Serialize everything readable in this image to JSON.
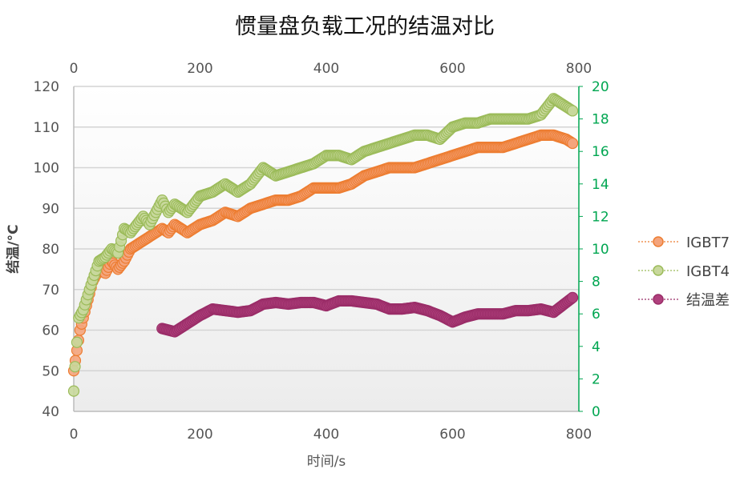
{
  "chart_data": {
    "type": "scatter",
    "title": "惯量盘负载工况的结温对比",
    "xlabel": "时间/s",
    "ylabel": "结温/°C",
    "xlim": [
      0,
      800
    ],
    "ylim": [
      40,
      120
    ],
    "y2lim": [
      0,
      20
    ],
    "x_ticks": [
      "0",
      "200",
      "400",
      "600",
      "800"
    ],
    "x2_ticks": [
      "0",
      "200",
      "400",
      "600",
      "800"
    ],
    "y_ticks": [
      "40",
      "50",
      "60",
      "70",
      "80",
      "90",
      "100",
      "110",
      "120"
    ],
    "y2_ticks": [
      "0",
      "2",
      "4",
      "6",
      "8",
      "10",
      "12",
      "14",
      "16",
      "18",
      "20"
    ],
    "grid": true,
    "legend_position": "right",
    "colors": {
      "IGBT7": "#ed7d31",
      "IGBT4": "#9bbb59",
      "结温差": "#a5306e",
      "y2_axis": "#00a651"
    },
    "series": [
      {
        "name": "IGBT7",
        "axis": "left",
        "x": [
          0,
          5,
          10,
          20,
          30,
          40,
          50,
          60,
          70,
          80,
          90,
          100,
          120,
          140,
          150,
          160,
          180,
          200,
          220,
          240,
          260,
          280,
          300,
          320,
          340,
          360,
          380,
          400,
          420,
          440,
          460,
          480,
          500,
          520,
          540,
          560,
          580,
          600,
          620,
          640,
          660,
          680,
          700,
          720,
          740,
          760,
          780,
          790
        ],
        "y": [
          50,
          55,
          60,
          66,
          72,
          75,
          74,
          77,
          75,
          77,
          80,
          81,
          83,
          85,
          84,
          86,
          84,
          86,
          87,
          89,
          88,
          90,
          91,
          92,
          92,
          93,
          95,
          95,
          95,
          96,
          98,
          99,
          100,
          100,
          100,
          101,
          102,
          103,
          104,
          105,
          105,
          105,
          106,
          107,
          108,
          108,
          107,
          106
        ]
      },
      {
        "name": "IGBT4",
        "axis": "left",
        "x": [
          0,
          2,
          5,
          8,
          15,
          25,
          40,
          50,
          60,
          70,
          80,
          90,
          100,
          110,
          120,
          140,
          150,
          160,
          180,
          200,
          220,
          240,
          260,
          280,
          300,
          320,
          340,
          360,
          380,
          400,
          420,
          440,
          460,
          480,
          500,
          520,
          540,
          560,
          580,
          600,
          620,
          640,
          660,
          680,
          700,
          720,
          740,
          760,
          780,
          790
        ],
        "y": [
          45,
          51,
          57,
          63,
          65,
          70,
          77,
          78,
          80,
          79,
          85,
          84,
          86,
          88,
          86,
          92,
          89,
          91,
          89,
          93,
          94,
          96,
          94,
          96,
          100,
          98,
          99,
          100,
          101,
          103,
          103,
          102,
          104,
          105,
          106,
          107,
          108,
          108,
          107,
          110,
          111,
          111,
          112,
          112,
          112,
          112,
          113,
          117,
          115,
          114
        ]
      },
      {
        "name": "结温差",
        "axis": "right",
        "x": [
          140,
          160,
          180,
          200,
          220,
          240,
          260,
          280,
          300,
          320,
          340,
          360,
          380,
          400,
          420,
          440,
          460,
          480,
          500,
          520,
          540,
          560,
          580,
          600,
          620,
          640,
          660,
          680,
          700,
          720,
          740,
          760,
          780,
          790
        ],
        "y": [
          5.1,
          4.9,
          5.4,
          5.9,
          6.3,
          6.2,
          6.1,
          6.2,
          6.6,
          6.7,
          6.6,
          6.7,
          6.7,
          6.5,
          6.8,
          6.8,
          6.7,
          6.6,
          6.3,
          6.3,
          6.4,
          6.2,
          5.9,
          5.5,
          5.8,
          6.0,
          6.0,
          6.0,
          6.2,
          6.2,
          6.3,
          6.1,
          6.7,
          7.0
        ]
      }
    ]
  }
}
